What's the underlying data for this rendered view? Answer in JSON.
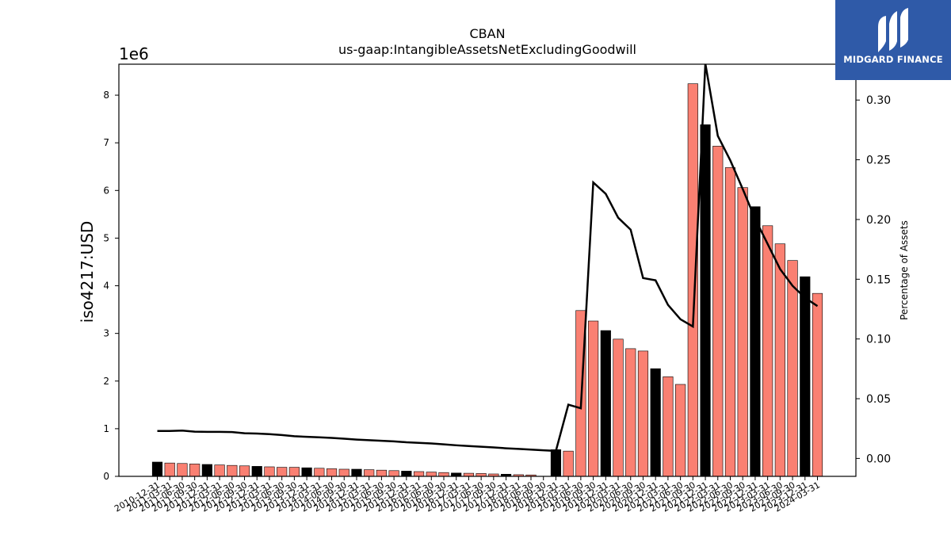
{
  "chart_data": {
    "type": "bar",
    "title": "CBAN",
    "subtitle": "us-gaap:IntangibleAssetsNetExcludingGoodwill",
    "ylabel": "iso4217:USD",
    "y2label": "Percentage of Assets",
    "y_offset_text": "1e6",
    "ylim": [
      0,
      8.65
    ],
    "y2lim": [
      -0.015,
      0.33
    ],
    "yticks": [
      0,
      1,
      2,
      3,
      4,
      5,
      6,
      7,
      8
    ],
    "y2ticks": [
      0.0,
      0.05,
      0.1,
      0.15,
      0.2,
      0.25,
      0.3
    ],
    "y2tick_labels": [
      "0.00",
      "0.05",
      "0.10",
      "0.15",
      "0.20",
      "0.25",
      "0.30"
    ],
    "bar_colors": {
      "annual": "#000000",
      "quarterly": "#fa8072"
    },
    "line_color": "#000000",
    "categories": [
      "2010-12-31",
      "2011-03-31",
      "2011-06-30",
      "2011-09-30",
      "2011-12-31",
      "2012-03-31",
      "2012-06-30",
      "2012-09-30",
      "2012-12-31",
      "2013-03-31",
      "2013-06-30",
      "2013-09-30",
      "2013-12-31",
      "2014-03-31",
      "2014-06-30",
      "2014-09-30",
      "2014-12-31",
      "2015-03-31",
      "2015-06-30",
      "2015-09-30",
      "2015-12-31",
      "2016-03-31",
      "2016-06-30",
      "2016-09-30",
      "2016-12-31",
      "2017-03-31",
      "2017-06-30",
      "2017-09-30",
      "2017-12-31",
      "2018-03-31",
      "2018-06-30",
      "2018-09-30",
      "2018-12-31",
      "2019-03-31",
      "2019-06-30",
      "2019-09-30",
      "2019-12-31",
      "2020-03-31",
      "2020-06-30",
      "2020-09-30",
      "2020-12-31",
      "2021-03-31",
      "2021-06-30",
      "2021-09-30",
      "2021-12-31",
      "2022-03-31",
      "2022-06-30",
      "2022-09-30",
      "2022-12-31",
      "2023-03-31",
      "2023-06-30",
      "2023-09-30",
      "2023-12-31",
      "2024-03-31"
    ],
    "values": [
      0.3,
      0.28,
      0.27,
      0.26,
      0.25,
      0.24,
      0.23,
      0.22,
      0.21,
      0.2,
      0.19,
      0.19,
      0.18,
      0.17,
      0.16,
      0.15,
      0.15,
      0.14,
      0.13,
      0.12,
      0.11,
      0.1,
      0.09,
      0.08,
      0.07,
      0.065,
      0.06,
      0.05,
      0.045,
      0.035,
      0.03,
      0.02,
      0.56,
      0.53,
      3.48,
      3.26,
      3.06,
      2.88,
      2.68,
      2.63,
      2.26,
      2.09,
      1.93,
      8.24,
      7.38,
      6.93,
      6.48,
      6.06,
      5.66,
      5.26,
      4.88,
      4.53,
      4.19,
      3.84
    ],
    "is_annual": [
      1,
      0,
      0,
      0,
      1,
      0,
      0,
      0,
      1,
      0,
      0,
      0,
      1,
      0,
      0,
      0,
      1,
      0,
      0,
      0,
      1,
      0,
      0,
      0,
      1,
      0,
      0,
      0,
      1,
      0,
      0,
      0,
      1,
      0,
      0,
      0,
      1,
      0,
      0,
      0,
      1,
      0,
      0,
      0,
      1,
      0,
      0,
      0,
      1,
      0,
      0,
      0,
      1,
      0
    ],
    "missing_bars": [
      "2018-09-30"
    ],
    "pct_of_assets": [
      0.023,
      0.023,
      0.0233,
      0.0224,
      0.0222,
      0.0222,
      0.0221,
      0.0211,
      0.0208,
      0.0203,
      0.0196,
      0.0186,
      0.0181,
      0.0177,
      0.0172,
      0.0165,
      0.0158,
      0.0153,
      0.0148,
      0.0143,
      0.0135,
      0.013,
      0.0125,
      0.0118,
      0.011,
      0.0104,
      0.0098,
      0.0092,
      0.0085,
      0.008,
      0.0074,
      0.0068,
      0.0063,
      0.045,
      0.042,
      0.231,
      0.2215,
      0.2015,
      0.1915,
      0.151,
      0.1491,
      0.1285,
      0.1165,
      0.1104,
      0.3305,
      0.27,
      0.2495,
      0.2255,
      0.2005,
      0.1795,
      0.1585,
      0.1445,
      0.1345,
      0.1275
    ]
  },
  "logo": {
    "text": "MIDGARD FINANCE"
  }
}
